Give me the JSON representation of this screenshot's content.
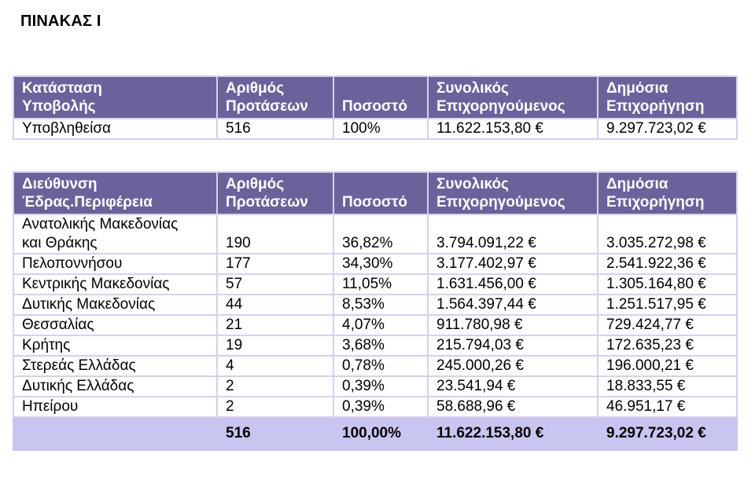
{
  "title": "ΠΙΝΑΚΑΣ Ι",
  "table1": {
    "headers": [
      [
        "Κατάσταση",
        "Υποβολής"
      ],
      [
        "Αριθμός",
        "Προτάσεων"
      ],
      [
        "",
        "Ποσοστό"
      ],
      [
        "Συνολικός",
        "Επιχορηγούμενος"
      ],
      [
        "Δημόσια",
        "Επιχορήγηση"
      ]
    ],
    "rows": [
      [
        "Υποβληθείσα",
        "516",
        "100%",
        "11.622.153,80 €",
        "9.297.723,02 €"
      ]
    ]
  },
  "table2": {
    "headers": [
      [
        "Διεύθυνση",
        "Έδρας.Περιφέρεια"
      ],
      [
        "Αριθμός",
        "Προτάσεων"
      ],
      [
        "",
        "Ποσοστό"
      ],
      [
        "Συνολικός",
        "Επιχορηγούμενος"
      ],
      [
        "Δημόσια",
        "Επιχορήγηση"
      ]
    ],
    "rows": [
      [
        "Ανατολικής Μακεδονίας\nκαι Θράκης",
        "190",
        "36,82%",
        "3.794.091,22 €",
        "3.035.272,98 €"
      ],
      [
        "Πελοποννήσου",
        "177",
        "34,30%",
        "3.177.402,97 €",
        "2.541.922,36 €"
      ],
      [
        "Κεντρικής Μακεδονίας",
        "57",
        "11,05%",
        "1.631.456,00 €",
        "1.305.164,80 €"
      ],
      [
        "Δυτικής Μακεδονίας",
        "44",
        "8,53%",
        "1.564.397,44 €",
        "1.251.517,95 €"
      ],
      [
        "Θεσσαλίας",
        "21",
        "4,07%",
        "911.780,98 €",
        "729.424,77 €"
      ],
      [
        "Κρήτης",
        "19",
        "3,68%",
        "215.794,03 €",
        "172.635,23 €"
      ],
      [
        "Στερεάς Ελλάδας",
        "4",
        "0,78%",
        "245.000,26 €",
        "196.000,21 €"
      ],
      [
        "Δυτικής Ελλάδας",
        "2",
        "0,39%",
        "23.541,94 €",
        "18.833,55 €"
      ],
      [
        "Ηπείρου",
        "2",
        "0,39%",
        "58.688,96 €",
        "46.951,17 €"
      ]
    ],
    "total": [
      "",
      "516",
      "100,00%",
      "11.622.153,80 €",
      "9.297.723,02 €"
    ]
  }
}
